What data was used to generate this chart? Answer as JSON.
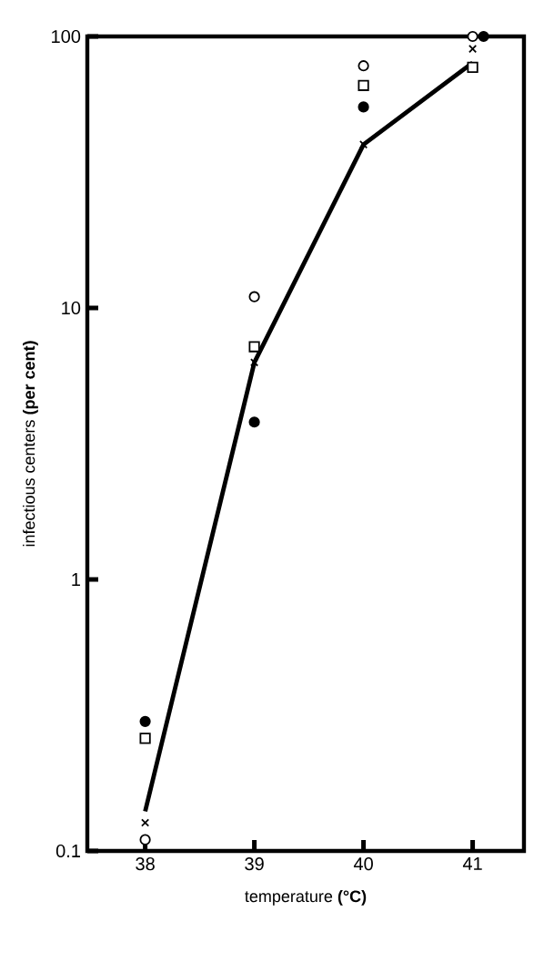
{
  "chart_data": {
    "type": "scatter",
    "xlabel": "temperature **(°C)**",
    "ylabel": "infectious centers **(per cent)**",
    "log": "y",
    "grid": false,
    "xlim": [
      37.47,
      41.47
    ],
    "ylim": [
      0.1,
      100
    ],
    "xticks": [
      38,
      39,
      40,
      41
    ],
    "yticks": [
      0.1,
      1,
      10,
      100
    ],
    "series": [
      {
        "type": "line",
        "color": "#000000",
        "marker": "none",
        "line_style": "solid",
        "x": [
          38,
          39,
          40,
          41
        ],
        "values": [
          0.14,
          6.3,
          40,
          80
        ]
      },
      {
        "color": "#ffffff",
        "marker": "circle",
        "x": [
          38,
          39,
          40,
          41
        ],
        "values": [
          0.11,
          11,
          78,
          100
        ]
      },
      {
        "color": "#000000",
        "marker": "circle",
        "x": [
          38,
          39,
          40,
          41.1
        ],
        "values": [
          0.3,
          3.8,
          55,
          100
        ]
      },
      {
        "color": "#ffffff",
        "marker": "square",
        "x": [
          38,
          39,
          40,
          41
        ],
        "values": [
          0.26,
          7.2,
          66,
          77
        ]
      },
      {
        "color": "#000000",
        "marker": "cross",
        "x": [
          38,
          39,
          40,
          41
        ],
        "values": [
          0.127,
          6.3,
          40,
          90
        ]
      }
    ]
  }
}
